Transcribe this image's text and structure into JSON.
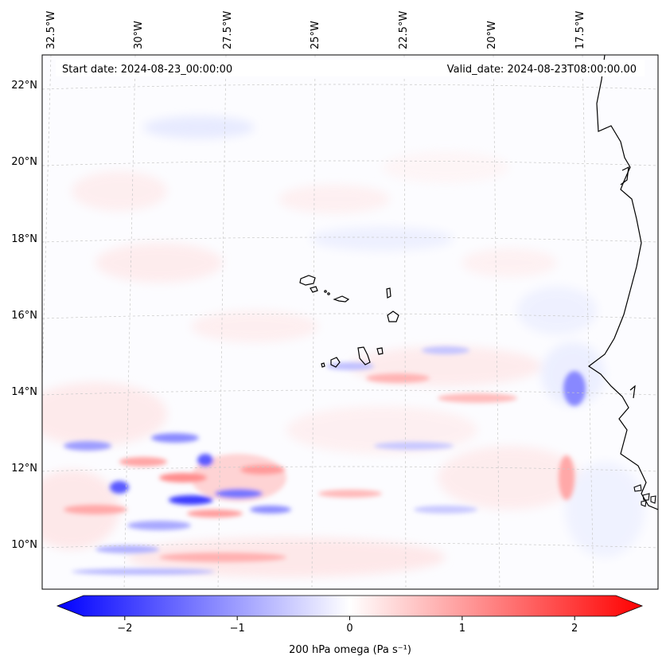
{
  "map": {
    "start_label": "Start date: 2024-08-23_00:00:00",
    "valid_label": "Valid_date: 2024-08-23T08:00:00.00",
    "lon_labels": [
      "32.5°W",
      "30°W",
      "27.5°W",
      "25°W",
      "22.5°W",
      "20°W",
      "17.5°W"
    ],
    "lat_labels": [
      "22°N",
      "20°N",
      "18°N",
      "16°N",
      "14°N",
      "12°N",
      "10°N"
    ],
    "field": "200 hPa omega",
    "units": "Pa s⁻¹",
    "colors": {
      "negative": "#0000ff",
      "neutral": "#ffffff",
      "positive": "#ff0000",
      "coast": "#000000",
      "grid": "#c8c8c8"
    }
  },
  "colorbar": {
    "label": "200 hPa omega (Pa s⁻¹)",
    "vmin": -2.6,
    "vmax": 2.6,
    "ticks": [
      {
        "value": -2,
        "label": "−2"
      },
      {
        "value": -1,
        "label": "−1"
      },
      {
        "value": 0,
        "label": "0"
      },
      {
        "value": 1,
        "label": "1"
      },
      {
        "value": 2,
        "label": "2"
      }
    ]
  }
}
